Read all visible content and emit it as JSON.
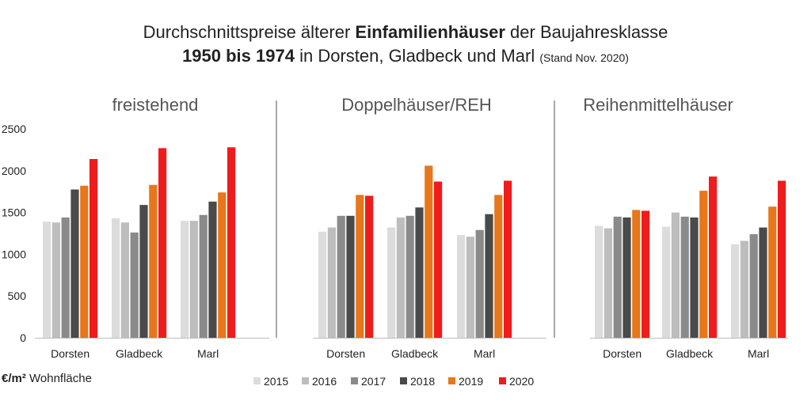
{
  "title": {
    "part1": "Durchschnittspreise älterer ",
    "bold1": "Einfamilienhäuser",
    "part2": " der Baujahresklasse",
    "bold2": "1950 bis 1974",
    "part3": " in Dorsten, Gladbeck und Marl ",
    "small": "(Stand Nov. 2020)"
  },
  "unit_label": {
    "bold": "€/m²",
    "text": " Wohnfläche"
  },
  "chart_data": {
    "type": "bar",
    "title": "Durchschnittspreise älterer Einfamilienhäuser der Baujahresklasse 1950 bis 1974 in Dorsten, Gladbeck und Marl (Stand Nov. 2020)",
    "ylabel": "€/m² Wohnfläche",
    "ylim": [
      0,
      2500
    ],
    "yticks": [
      0,
      500,
      1000,
      1500,
      2000,
      2500
    ],
    "ytick_labels": [
      "0",
      "500",
      "1000",
      "1500",
      "2000",
      "2500"
    ],
    "grid": false,
    "legend_position": "bottom",
    "series": [
      {
        "name": "2015",
        "color": "#dcdcdc"
      },
      {
        "name": "2016",
        "color": "#bdbdbd"
      },
      {
        "name": "2017",
        "color": "#8a8a8a"
      },
      {
        "name": "2018",
        "color": "#4a4a4a"
      },
      {
        "name": "2019",
        "color": "#e8761a"
      },
      {
        "name": "2020",
        "color": "#ee1c1c"
      }
    ],
    "panels": [
      {
        "title": "freistehend",
        "categories": [
          "Dorsten",
          "Gladbeck",
          "Marl"
        ],
        "values": [
          [
            1390,
            1380,
            1440,
            1775,
            1820,
            2140
          ],
          [
            1430,
            1380,
            1260,
            1590,
            1830,
            2270
          ],
          [
            1400,
            1400,
            1470,
            1630,
            1740,
            2280
          ]
        ]
      },
      {
        "title": "Doppelhäuser/REH",
        "categories": [
          "Dorsten",
          "Gladbeck",
          "Marl"
        ],
        "values": [
          [
            1270,
            1320,
            1460,
            1460,
            1710,
            1700
          ],
          [
            1320,
            1440,
            1460,
            1560,
            2060,
            1870
          ],
          [
            1230,
            1210,
            1290,
            1480,
            1710,
            1880
          ]
        ]
      },
      {
        "title": "Reihenmittelhäuser",
        "categories": [
          "Dorsten",
          "Gladbeck",
          "Marl"
        ],
        "values": [
          [
            1340,
            1310,
            1450,
            1440,
            1530,
            1520
          ],
          [
            1330,
            1500,
            1450,
            1440,
            1760,
            1930
          ],
          [
            1120,
            1160,
            1240,
            1320,
            1570,
            1880
          ]
        ]
      }
    ]
  }
}
